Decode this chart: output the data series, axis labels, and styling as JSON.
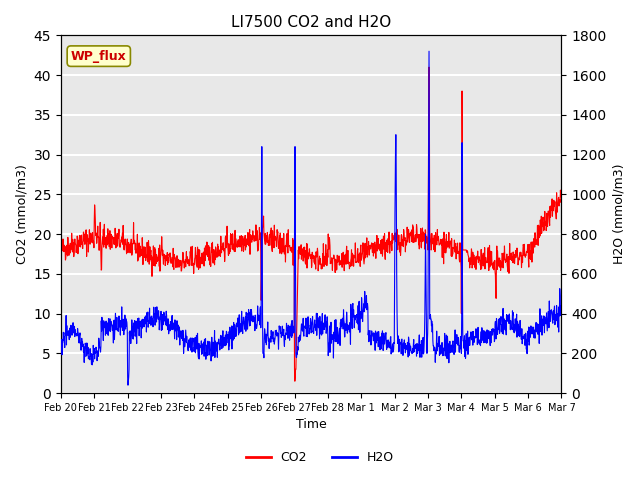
{
  "title": "LI7500 CO2 and H2O",
  "xlabel": "Time",
  "ylabel_left": "CO2 (mmol/m3)",
  "ylabel_right": "H2O (mmol/m3)",
  "ylim_left": [
    0,
    45
  ],
  "ylim_right": [
    0,
    1800
  ],
  "legend_label_co2": "CO2",
  "legend_label_h2o": "H2O",
  "co2_color": "#ff0000",
  "h2o_color": "#0000ff",
  "bg_color": "#ffffff",
  "plot_bg_color": "#e8e8e8",
  "wp_flux_label": "WP_flux",
  "wp_flux_bg": "#ffffcc",
  "wp_flux_border": "#888800",
  "grid_color": "#ffffff",
  "tick_labels": [
    "Feb 20",
    "Feb 21",
    "Feb 22",
    "Feb 23",
    "Feb 24",
    "Feb 25",
    "Feb 26",
    "Feb 27",
    "Feb 28",
    "Mar 1",
    "Mar 2",
    "Mar 3",
    "Mar 4",
    "Mar 5",
    "Mar 6",
    "Mar 7"
  ]
}
